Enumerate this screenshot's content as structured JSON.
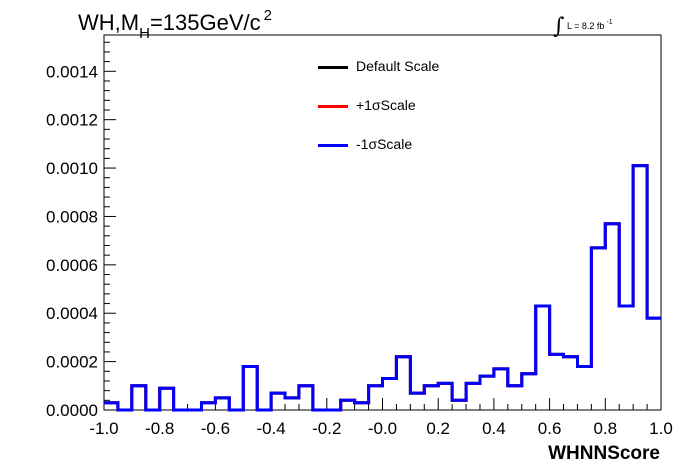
{
  "header": {
    "title_main": "WH,M",
    "title_sub": "H",
    "title_value": "=135GeV/c",
    "title_sup": "2",
    "lumi_integral": "∫",
    "lumi_text": "L = 8.2 fb",
    "lumi_sup": "-1"
  },
  "legend": {
    "items": [
      {
        "label": "Default Scale",
        "color": "#000000"
      },
      {
        "label": "+1σScale",
        "color": "#ff0000"
      },
      {
        "label": "-1σScale",
        "color": "#0000ff"
      }
    ]
  },
  "chart_data": {
    "type": "histogram",
    "title": "WH,M_H=135GeV/c^2",
    "xlabel": "WHNNScore",
    "ylabel": "",
    "xlim": [
      -1.0,
      1.0
    ],
    "ylim": [
      0,
      0.00155
    ],
    "x_ticks": [
      -1.0,
      -0.8,
      -0.6,
      -0.4,
      -0.2,
      0.0,
      0.2,
      0.4,
      0.6,
      0.8,
      1.0
    ],
    "x_tick_labels": [
      "-1.0",
      "-0.8",
      "-0.6",
      "-0.4",
      "-0.2",
      "-0.0",
      "0.2",
      "0.4",
      "0.6",
      "0.8",
      "1.0"
    ],
    "y_ticks": [
      0,
      0.0002,
      0.0004,
      0.0006,
      0.0008,
      0.001,
      0.0012,
      0.0014
    ],
    "y_tick_labels": [
      "0.0000",
      "0.0002",
      "0.0004",
      "0.0006",
      "0.0008",
      "0.0010",
      "0.0012",
      "0.0014"
    ],
    "bin_edges": [
      -1.0,
      -0.95,
      -0.9,
      -0.85,
      -0.8,
      -0.75,
      -0.7,
      -0.65,
      -0.6,
      -0.55,
      -0.5,
      -0.45,
      -0.4,
      -0.35,
      -0.3,
      -0.25,
      -0.2,
      -0.15,
      -0.1,
      -0.05,
      0.0,
      0.05,
      0.1,
      0.15,
      0.2,
      0.25,
      0.3,
      0.35,
      0.4,
      0.45,
      0.5,
      0.55,
      0.6,
      0.65,
      0.7,
      0.75,
      0.8,
      0.85,
      0.9,
      0.95,
      1.0
    ],
    "series": [
      {
        "name": "Default Scale",
        "color": "#000000",
        "values": [
          3e-05,
          0.0,
          0.0001,
          0.0,
          9e-05,
          0.0,
          0.0,
          3e-05,
          5e-05,
          0.0,
          0.00018,
          0.0,
          7e-05,
          5e-05,
          0.0001,
          0.0,
          0.0,
          4e-05,
          3e-05,
          0.0001,
          0.00013,
          0.00022,
          7e-05,
          0.0001,
          0.00011,
          4e-05,
          0.00011,
          0.00014,
          0.00017,
          0.0001,
          0.00015,
          0.00043,
          0.00023,
          0.00022,
          0.00018,
          0.00067,
          0.00077,
          0.00043,
          0.00101,
          0.00038
        ]
      },
      {
        "name": "+1σScale",
        "color": "#ff0000",
        "values": [
          3e-05,
          0.0,
          0.0001,
          0.0,
          9e-05,
          0.0,
          0.0,
          3e-05,
          5e-05,
          0.0,
          0.00018,
          0.0,
          7e-05,
          5e-05,
          0.0001,
          0.0,
          0.0,
          4e-05,
          3e-05,
          0.0001,
          0.00013,
          0.00022,
          7e-05,
          0.0001,
          0.00011,
          4e-05,
          0.00011,
          0.00014,
          0.00017,
          0.0001,
          0.00015,
          0.00043,
          0.00023,
          0.00022,
          0.00018,
          0.00067,
          0.00077,
          0.00043,
          0.00101,
          0.00038
        ]
      },
      {
        "name": "-1σScale",
        "color": "#0000ff",
        "values": [
          3e-05,
          0.0,
          0.0001,
          0.0,
          9e-05,
          0.0,
          0.0,
          3e-05,
          5e-05,
          0.0,
          0.00018,
          0.0,
          7e-05,
          5e-05,
          0.0001,
          0.0,
          0.0,
          4e-05,
          3e-05,
          0.0001,
          0.00013,
          0.00022,
          7e-05,
          0.0001,
          0.00011,
          4e-05,
          0.00011,
          0.00014,
          0.00017,
          0.0001,
          0.00015,
          0.00043,
          0.00023,
          0.00022,
          0.00018,
          0.00067,
          0.00077,
          0.00043,
          0.00101,
          0.00038
        ]
      }
    ],
    "grid": false,
    "legend_position": "top-center"
  }
}
